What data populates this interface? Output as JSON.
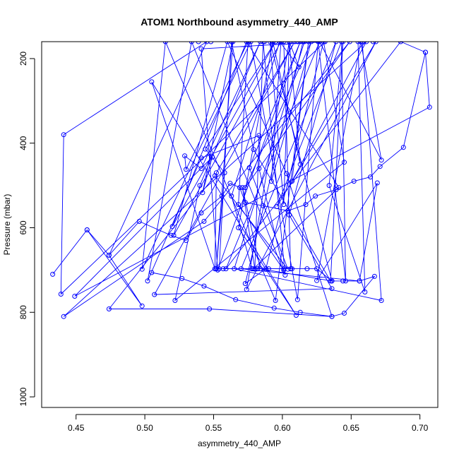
{
  "chart_data": {
    "type": "line",
    "title": "ATOM1 Northbound asymmetry_440_AMP",
    "xlabel": "asymmetry_440_AMP",
    "ylabel": "Pressure (mbar)",
    "xlim": [
      0.425,
      0.713
    ],
    "ylim": [
      1025,
      160
    ],
    "y_reversed": true,
    "x_ticks": [
      0.45,
      0.5,
      0.55,
      0.6,
      0.65,
      0.7
    ],
    "x_tick_labels": [
      "0.45",
      "0.50",
      "0.55",
      "0.60",
      "0.65",
      "0.70"
    ],
    "y_ticks": [
      200,
      400,
      600,
      800,
      1000
    ],
    "y_tick_labels": [
      "200",
      "400",
      "600",
      "800",
      "1000"
    ],
    "grid": false,
    "legend": "none",
    "colors": {
      "series": "#0000ff",
      "axes": "#000000",
      "background": "#ffffff"
    },
    "series": [
      {
        "points": [
          [
            0.433,
            710
          ],
          [
            0.458,
            605
          ],
          [
            0.498,
            785
          ],
          [
            0.474,
            665
          ],
          [
            0.545,
            160
          ],
          [
            0.441,
            380
          ],
          [
            0.439,
            757
          ],
          [
            0.631,
            160
          ],
          [
            0.541,
            177
          ],
          [
            0.553,
            700
          ],
          [
            0.613,
            160
          ],
          [
            0.576,
            458
          ],
          [
            0.604,
            698
          ],
          [
            0.551,
            477
          ],
          [
            0.474,
            792
          ],
          [
            0.547,
            792
          ],
          [
            0.636,
            810
          ],
          [
            0.603,
            472
          ],
          [
            0.56,
            160
          ],
          [
            0.521,
            618
          ],
          [
            0.599,
            160
          ],
          [
            0.592,
            490
          ],
          [
            0.621,
            160
          ],
          [
            0.573,
            505
          ],
          [
            0.649,
            160
          ],
          [
            0.543,
            585
          ],
          [
            0.441,
            810
          ],
          [
            0.661,
            160
          ],
          [
            0.607,
            490
          ],
          [
            0.619,
            160
          ],
          [
            0.595,
            772
          ],
          [
            0.515,
            160
          ],
          [
            0.498,
            698
          ],
          [
            0.577,
            160
          ],
          [
            0.611,
            770
          ],
          [
            0.626,
            160
          ],
          [
            0.646,
            726
          ],
          [
            0.643,
            160
          ],
          [
            0.596,
            550
          ],
          [
            0.668,
            160
          ],
          [
            0.574,
            746
          ],
          [
            0.605,
            160
          ],
          [
            0.613,
            450
          ],
          [
            0.593,
            160
          ],
          [
            0.568,
            600
          ],
          [
            0.61,
            807
          ],
          [
            0.505,
            255
          ],
          [
            0.551,
            697
          ],
          [
            0.552,
            470
          ],
          [
            0.609,
            160
          ],
          [
            0.507,
            758
          ],
          [
            0.636,
            744
          ],
          [
            0.605,
            570
          ],
          [
            0.639,
            160
          ],
          [
            0.57,
            697
          ],
          [
            0.656,
            726
          ],
          [
            0.669,
            494
          ],
          [
            0.625,
            725
          ],
          [
            0.657,
            160
          ],
          [
            0.672,
            440
          ],
          [
            0.627,
            160
          ],
          [
            0.559,
            697
          ],
          [
            0.686,
            160
          ],
          [
            0.704,
            185
          ],
          [
            0.707,
            315
          ],
          [
            0.449,
            762
          ],
          [
            0.549,
            433
          ],
          [
            0.542,
            517
          ],
          [
            0.564,
            160
          ],
          [
            0.552,
            697
          ],
          [
            0.558,
            470
          ],
          [
            0.544,
            414
          ],
          [
            0.595,
            160
          ],
          [
            0.52,
            597
          ],
          [
            0.574,
            160
          ],
          [
            0.641,
            505
          ],
          [
            0.579,
            697
          ],
          [
            0.606,
            697
          ],
          [
            0.601,
            160
          ],
          [
            0.615,
            160
          ],
          [
            0.573,
            732
          ],
          [
            0.588,
            697
          ],
          [
            0.63,
            160
          ],
          [
            0.645,
            445
          ],
          [
            0.522,
            772
          ],
          [
            0.54,
            500
          ],
          [
            0.584,
            160
          ],
          [
            0.541,
            460
          ],
          [
            0.529,
            430
          ],
          [
            0.53,
            462
          ],
          [
            0.575,
            160
          ],
          [
            0.568,
            545
          ],
          [
            0.601,
            700
          ],
          [
            0.583,
            460
          ],
          [
            0.586,
            160
          ],
          [
            0.602,
            712
          ],
          [
            0.534,
            160
          ],
          [
            0.502,
            726
          ],
          [
            0.541,
            435
          ],
          [
            0.583,
            382
          ],
          [
            0.58,
            698
          ],
          [
            0.571,
            505
          ],
          [
            0.584,
            697
          ],
          [
            0.636,
            726
          ],
          [
            0.591,
            160
          ],
          [
            0.601,
            545
          ],
          [
            0.605,
            160
          ],
          [
            0.612,
            220
          ],
          [
            0.598,
            160
          ],
          [
            0.563,
            525
          ],
          [
            0.578,
            697
          ],
          [
            0.554,
            697
          ],
          [
            0.563,
            160
          ],
          [
            0.579,
            415
          ],
          [
            0.635,
            726
          ],
          [
            0.644,
            160
          ],
          [
            0.634,
            500
          ],
          [
            0.66,
            752
          ],
          [
            0.655,
            160
          ],
          [
            0.606,
            160
          ],
          [
            0.611,
            160
          ],
          [
            0.658,
            160
          ],
          [
            0.672,
            772
          ],
          [
            0.565,
            697
          ],
          [
            0.616,
            160
          ],
          [
            0.666,
            160
          ],
          [
            0.593,
            160
          ],
          [
            0.539,
            160
          ],
          [
            0.587,
            160
          ],
          [
            0.548,
            160
          ]
        ]
      },
      {
        "points": [
          [
            0.458,
            605
          ],
          [
            0.474,
            665
          ],
          [
            0.496,
            585
          ],
          [
            0.519,
            618
          ],
          [
            0.53,
            630
          ],
          [
            0.541,
            565
          ],
          [
            0.556,
            525
          ],
          [
            0.562,
            495
          ],
          [
            0.569,
            505
          ],
          [
            0.573,
            540
          ],
          [
            0.586,
            548
          ],
          [
            0.604,
            560
          ],
          [
            0.617,
            545
          ],
          [
            0.624,
            525
          ],
          [
            0.639,
            510
          ],
          [
            0.652,
            490
          ],
          [
            0.664,
            480
          ],
          [
            0.671,
            455
          ],
          [
            0.688,
            410
          ],
          [
            0.704,
            185
          ]
        ]
      },
      {
        "points": [
          [
            0.551,
            697
          ],
          [
            0.557,
            697
          ],
          [
            0.582,
            697
          ],
          [
            0.59,
            697
          ],
          [
            0.601,
            697
          ],
          [
            0.607,
            697
          ],
          [
            0.618,
            697
          ],
          [
            0.625,
            697
          ],
          [
            0.636,
            726
          ],
          [
            0.644,
            726
          ],
          [
            0.656,
            726
          ],
          [
            0.667,
            715
          ],
          [
            0.645,
            802
          ],
          [
            0.636,
            810
          ],
          [
            0.613,
            800
          ],
          [
            0.594,
            790
          ],
          [
            0.566,
            770
          ],
          [
            0.543,
            738
          ],
          [
            0.527,
            720
          ],
          [
            0.505,
            706
          ]
        ]
      }
    ]
  }
}
